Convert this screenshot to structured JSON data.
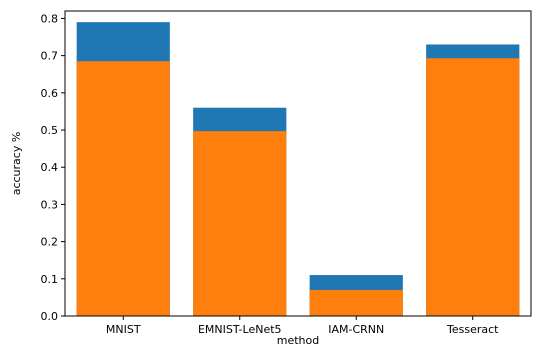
{
  "chart_data": {
    "type": "bar",
    "xlabel": "method",
    "ylabel": "accuracy %",
    "ylim": [
      0,
      0.82
    ],
    "yticks": [
      0.0,
      0.1,
      0.2,
      0.3,
      0.4,
      0.5,
      0.6,
      0.7,
      0.8
    ],
    "ytick_labels": [
      "0.0",
      "0.1",
      "0.2",
      "0.3",
      "0.4",
      "0.5",
      "0.6",
      "0.7",
      "0.8"
    ],
    "categories": [
      "MNIST",
      "EMNIST-LeNet5",
      "IAM-CRNN",
      "Tesseract"
    ],
    "overlay": true,
    "grid": false,
    "series": [
      {
        "color": "#1f77b4",
        "values": [
          0.79,
          0.56,
          0.11,
          0.73
        ]
      },
      {
        "color": "#ff7f0e",
        "values": [
          0.685,
          0.497,
          0.07,
          0.693
        ]
      }
    ]
  }
}
